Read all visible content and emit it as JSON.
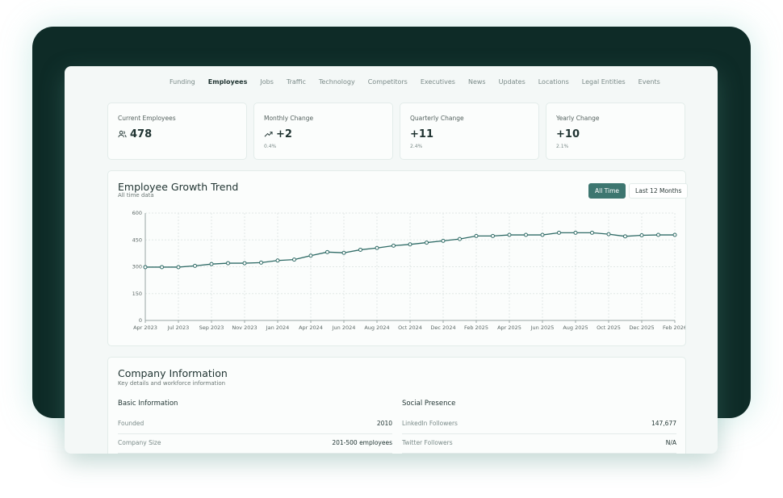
{
  "nav": {
    "tabs": [
      "Funding",
      "Employees",
      "Jobs",
      "Traffic",
      "Technology",
      "Competitors",
      "Executives",
      "News",
      "Updates",
      "Locations",
      "Legal Entities",
      "Events"
    ],
    "active_tab": 1
  },
  "cards": [
    {
      "label": "Current Employees",
      "value": "478"
    },
    {
      "label": "Monthly Change",
      "value": "+2",
      "sub": "0.4%"
    },
    {
      "label": "Quarterly Change",
      "value": "+11",
      "sub": "2.4%"
    },
    {
      "label": "Yearly Change",
      "value": "+10",
      "sub": "2.1%"
    }
  ],
  "chart_toggle": {
    "buttons": [
      "All Time",
      "Last 12 Months"
    ],
    "active": 0
  },
  "chart_data": {
    "type": "line",
    "title": "Employee Growth Trend",
    "subtitle": "All time data",
    "categories": [
      "Apr 2023",
      null,
      "Jul 2023",
      null,
      "Sep 2023",
      null,
      "Nov 2023",
      null,
      "Jan 2024",
      null,
      "Apr 2024",
      null,
      "Jun 2024",
      null,
      "Aug 2024",
      null,
      "Oct 2024",
      null,
      "Dec 2024",
      null,
      "Feb 2025",
      null,
      "Apr 2025",
      null,
      "Jun 2025",
      null,
      "Aug 2025",
      null,
      "Oct 2025",
      null,
      "Dec 2025",
      null,
      "Feb 2026"
    ],
    "values": [
      298,
      298,
      298,
      305,
      315,
      320,
      320,
      323,
      335,
      340,
      362,
      382,
      378,
      395,
      405,
      418,
      425,
      435,
      445,
      455,
      472,
      472,
      478,
      478,
      478,
      490,
      490,
      490,
      482,
      470,
      476,
      478,
      478
    ],
    "color": "#2f6b66",
    "ylim": [
      0,
      600
    ],
    "yticks": [
      0,
      150,
      300,
      450,
      600
    ],
    "grid": true
  },
  "company": {
    "title": "Company Information",
    "subtitle": "Key details and workforce information",
    "sections": [
      {
        "title": "Basic Information",
        "rows": [
          [
            "Founded",
            "2010"
          ],
          [
            "Company Size",
            "201-500 employees"
          ]
        ]
      },
      {
        "title": "Social Presence",
        "rows": [
          [
            "LinkedIn Followers",
            "147,677"
          ],
          [
            "Twitter Followers",
            "N/A"
          ]
        ]
      }
    ]
  }
}
